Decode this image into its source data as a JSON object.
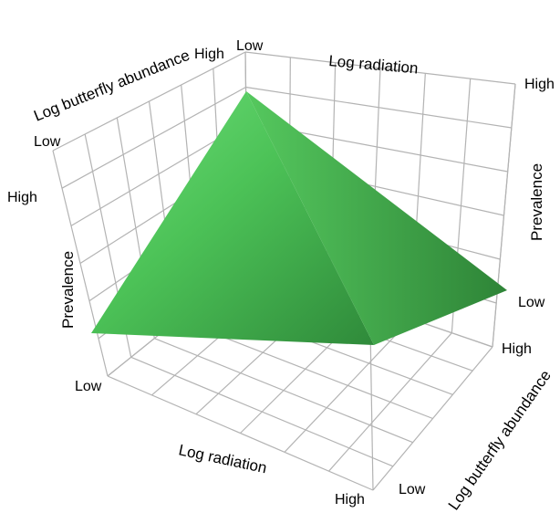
{
  "chart_data": {
    "type": "surface",
    "title": "",
    "x_axis": {
      "label": "Log radiation",
      "ticks": [
        "Low",
        "High"
      ]
    },
    "y_axis": {
      "label": "Log butterfly abundance",
      "ticks": [
        "Low",
        "High"
      ]
    },
    "z_axis": {
      "label": "Prevalence",
      "ticks": [
        "Low",
        "High"
      ]
    },
    "grid": true,
    "surface_color": "#4caf50",
    "surface_corners": [
      {
        "radiation": "Low",
        "butterfly_abundance": "Low",
        "prevalence": "High"
      },
      {
        "radiation": "High",
        "butterfly_abundance": "Low",
        "prevalence": "Low"
      },
      {
        "radiation": "High",
        "butterfly_abundance": "High",
        "prevalence": "Low"
      },
      {
        "radiation": "Low",
        "butterfly_abundance": "High",
        "prevalence": "Low"
      }
    ]
  },
  "labels": {
    "radiation_front_title": "Log radiation",
    "radiation_back_title": "Log radiation",
    "butterfly_left_title": "Log butterfly abundance",
    "butterfly_right_title": "Log butterfly abundance",
    "prevalence_left_title": "Prevalence",
    "prevalence_right_title": "Prevalence",
    "front_low": "Low",
    "front_high": "High",
    "left_high": "High",
    "left_low": "Low",
    "top_low": "Low",
    "right_high": "High",
    "right_low": "Low",
    "prev_left_high": "High",
    "prev_right_low": "Low",
    "bottom_right_high": "High",
    "bottom_right_low": "Low"
  }
}
